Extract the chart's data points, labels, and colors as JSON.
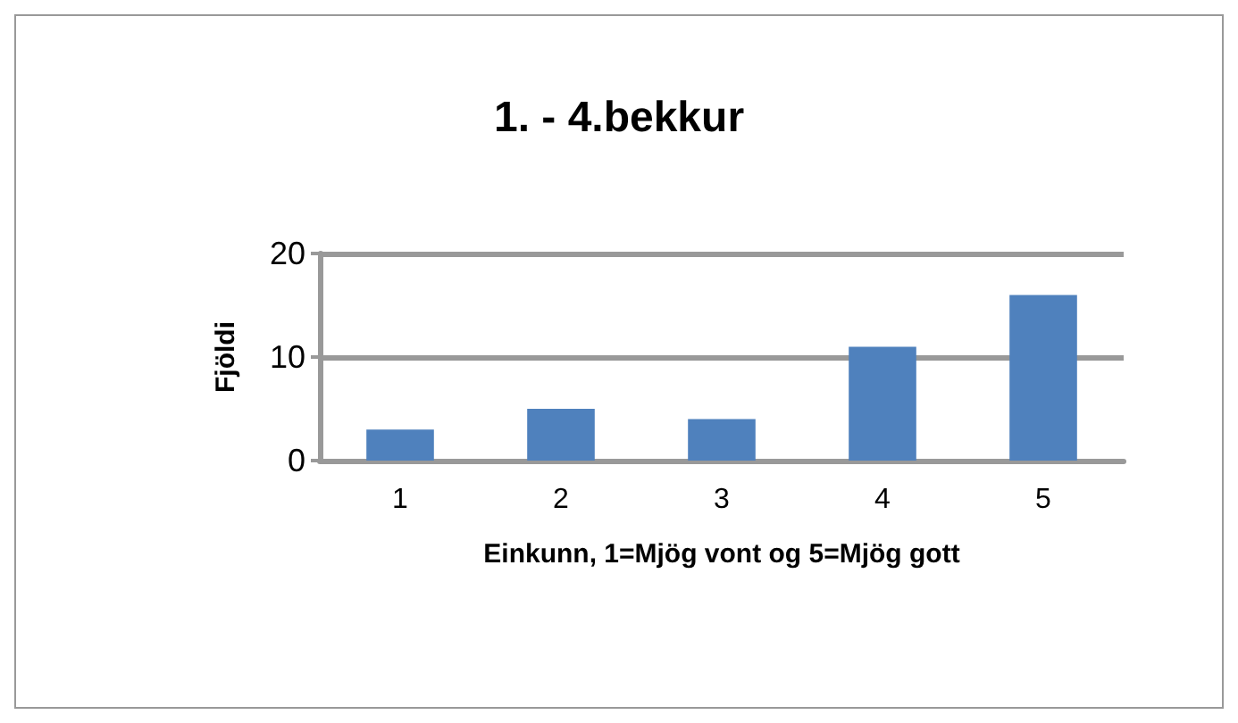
{
  "chart_data": {
    "type": "bar",
    "title": "1. - 4.bekkur",
    "xlabel": "Einkunn, 1=Mjög vont og 5=Mjög gott",
    "ylabel": "Fjöldi",
    "categories": [
      "1",
      "2",
      "3",
      "4",
      "5"
    ],
    "values": [
      3,
      5,
      4,
      11,
      16
    ],
    "color": "#4f81bd",
    "ylim": [
      0,
      20
    ],
    "yticks": [
      0,
      10,
      20
    ],
    "grid": "y"
  }
}
